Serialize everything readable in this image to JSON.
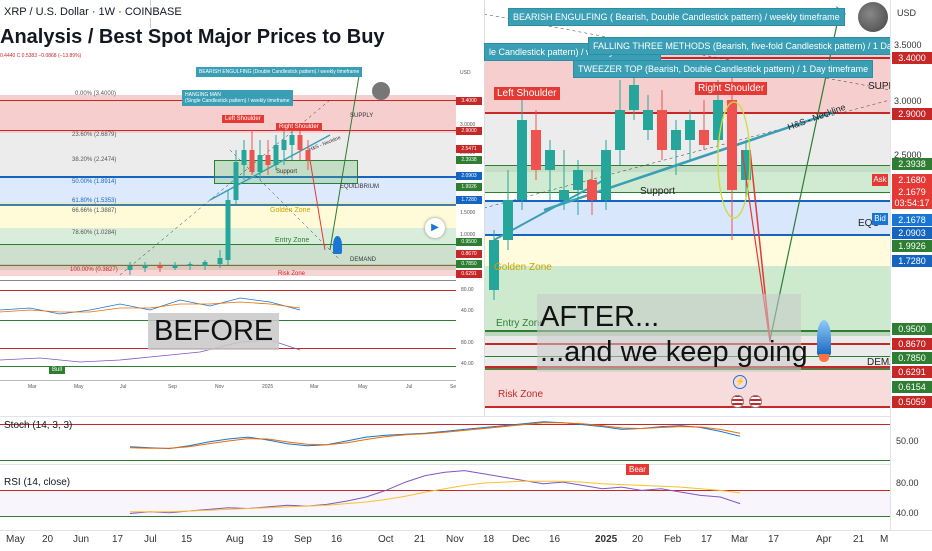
{
  "header": {
    "symbol": "XRP / U.S. Dollar · 1W · COINBASE",
    "title": "Analysis / Best Spot Major Prices to Buy",
    "ohlc_small": "0.4440  C 0.5383  −0.0868 (−13.89%)",
    "currency": "USD"
  },
  "before_label": "BEFORE",
  "after_label_1": "AFTER...",
  "after_label_2": "...and we keep going",
  "patterns": {
    "bearish_engulfing": "BEARISH ENGULFING ( Bearish, Double Candlestick pattern) / weekly timeframe",
    "falling_three": "FALLING THREE METHODS (Bearish, five-fold Candlestick pattern) / 1 Day timeframe",
    "tweezer_top": "TWEEZER TOP (Bearish, Double Candlestick pattern) / 1 Day timeframe",
    "partial_candle": "le Candlestick pattern) / weekly timeframe",
    "supply_partial": "SUPP",
    "left_shoulder": "Left Shoulder",
    "right_shoulder": "Right Shoulder",
    "neckline": "H&S - Neckline",
    "support": "Support",
    "golden_zone": "Golden Zone",
    "entry_zone": "Entry Zone",
    "risk_zone": "Risk Zone",
    "demand_partial": "DEMA",
    "equilibrium_partial": "EQU",
    "bear": "Bear"
  },
  "before_chart": {
    "bearish_engulfing": "BEARISH ENGULFING (Double Candlestick pattern) / weekly timeframe",
    "hanging_man_1": "HANGING MAN",
    "hanging_man_2": "(Single Candlestick pattern) / weekly timeframe",
    "left_shoulder": "Left Shoulder",
    "right_shoulder": "Right Shoulder",
    "supply": "SUPPLY",
    "support": "Support",
    "equilibrium": "EQUILIBRIUM",
    "golden_zone": "Golden Zone",
    "entry_zone": "Entry Zone",
    "demand": "DEMAND",
    "risk_zone": "Risk Zone",
    "neckline": "H&S - Neckline",
    "bull": "Bull",
    "fib_levels": [
      {
        "label": "0.00% (3.4000)"
      },
      {
        "label": "23.60% (2.6879)"
      },
      {
        "label": "38.20% (2.2474)"
      },
      {
        "label": "50.00% (1.8914)"
      },
      {
        "label": "61.80% (1.5353)"
      },
      {
        "label": "66.66% (1.3887)"
      },
      {
        "label": "78.60% (1.0284)"
      },
      {
        "label": "100.00% (0.3827)"
      }
    ],
    "price_ticks": [
      "3.0000",
      "2.5000",
      "2.0000",
      "1.5000",
      "1.0000"
    ],
    "price_tags": [
      {
        "v": "3.4000",
        "c": "#c62828"
      },
      {
        "v": "2.9000",
        "c": "#c62828"
      },
      {
        "v": "2.5471",
        "c": "#c62828"
      },
      {
        "v": "2.3938",
        "c": "#2e7d32"
      },
      {
        "v": "2.0903",
        "c": "#1565c0"
      },
      {
        "v": "1.9926",
        "c": "#2e7d32"
      },
      {
        "v": "1.7280",
        "c": "#1565c0"
      },
      {
        "v": "0.9500",
        "c": "#2e7d32"
      },
      {
        "v": "0.8670",
        "c": "#c62828"
      },
      {
        "v": "0.7850",
        "c": "#2e7d32"
      },
      {
        "v": "0.6291",
        "c": "#c62828"
      }
    ],
    "osc_ticks": [
      "80.00",
      "40.00",
      "80.00",
      "40.00"
    ],
    "x_ticks": [
      "Mar",
      "May",
      "Jul",
      "Sep",
      "Nov",
      "2025",
      "Mar",
      "May",
      "Jul",
      "Se"
    ]
  },
  "price_axis": {
    "ticks": [
      "3.5000",
      "3.0000",
      "2.5000"
    ],
    "ask": "Ask",
    "bid": "Bid",
    "tags": [
      {
        "v": "3.4000",
        "c": "#c62828"
      },
      {
        "v": "2.9000",
        "c": "#c62828"
      },
      {
        "v": "2.3938",
        "c": "#2e7d32"
      },
      {
        "v": "2.1680",
        "c": "#e53935"
      },
      {
        "v": "2.1679",
        "c": "#e53935"
      },
      {
        "v": "03:54:17",
        "c": "#e53935"
      },
      {
        "v": "2.1678",
        "c": "#1976d2"
      },
      {
        "v": "2.0903",
        "c": "#1565c0"
      },
      {
        "v": "1.9926",
        "c": "#2e7d32"
      },
      {
        "v": "1.7280",
        "c": "#1565c0"
      },
      {
        "v": "0.9500",
        "c": "#2e7d32"
      },
      {
        "v": "0.8670",
        "c": "#c62828"
      },
      {
        "v": "0.7850",
        "c": "#2e7d32"
      },
      {
        "v": "0.6291",
        "c": "#c62828"
      },
      {
        "v": "0.6154",
        "c": "#2e7d32"
      },
      {
        "v": "0.5059",
        "c": "#c62828"
      }
    ]
  },
  "stoch": {
    "label": "Stoch (14, 3, 3)",
    "tick": "50.00"
  },
  "rsi": {
    "label": "RSI (14, close)",
    "ticks": [
      "80.00",
      "40.00"
    ]
  },
  "x_axis": {
    "ticks": [
      "May",
      "20",
      "Jun",
      "17",
      "Jul",
      "15",
      "Aug",
      "19",
      "Sep",
      "16",
      "Oct",
      "21",
      "Nov",
      "18",
      "Dec",
      "16",
      "2025",
      "20",
      "Feb",
      "17",
      "Mar",
      "17",
      "Apr",
      "21",
      "M"
    ]
  },
  "chart_data": [
    {
      "type": "line",
      "title": "Stoch (14, 3, 3)",
      "series": [
        {
          "values": [
            36,
            34,
            32,
            38,
            46,
            52,
            56,
            50,
            42,
            38,
            40,
            48,
            56,
            60,
            62,
            64,
            68,
            72,
            76,
            80,
            84,
            88,
            86,
            82,
            78,
            72,
            74,
            78,
            80,
            76,
            68,
            58
          ]
        },
        {
          "values": [
            34,
            33,
            33,
            36,
            42,
            48,
            53,
            52,
            46,
            41,
            40,
            44,
            51,
            57,
            61,
            63,
            66,
            70,
            74,
            78,
            82,
            86,
            86,
            84,
            80,
            75,
            74,
            76,
            78,
            77,
            72,
            64
          ]
        }
      ],
      "ylim": [
        0,
        100
      ]
    },
    {
      "type": "line",
      "title": "RSI (14, close)",
      "series": [
        {
          "values": [
            40,
            42,
            41,
            43,
            45,
            47,
            46,
            48,
            50,
            49,
            51,
            55,
            60,
            68,
            78,
            86,
            90,
            92,
            88,
            84,
            80,
            76,
            78,
            74,
            70,
            72,
            68,
            70,
            66,
            62,
            60,
            52
          ]
        },
        {
          "values": [
            42,
            42,
            42,
            43,
            44,
            45,
            46,
            47,
            48,
            49,
            50,
            52,
            54,
            57,
            61,
            66,
            70,
            74,
            77,
            78,
            79,
            79,
            79,
            78,
            76,
            75,
            74,
            73,
            72,
            70,
            68,
            65
          ]
        }
      ],
      "ylim": [
        20,
        100
      ]
    }
  ]
}
